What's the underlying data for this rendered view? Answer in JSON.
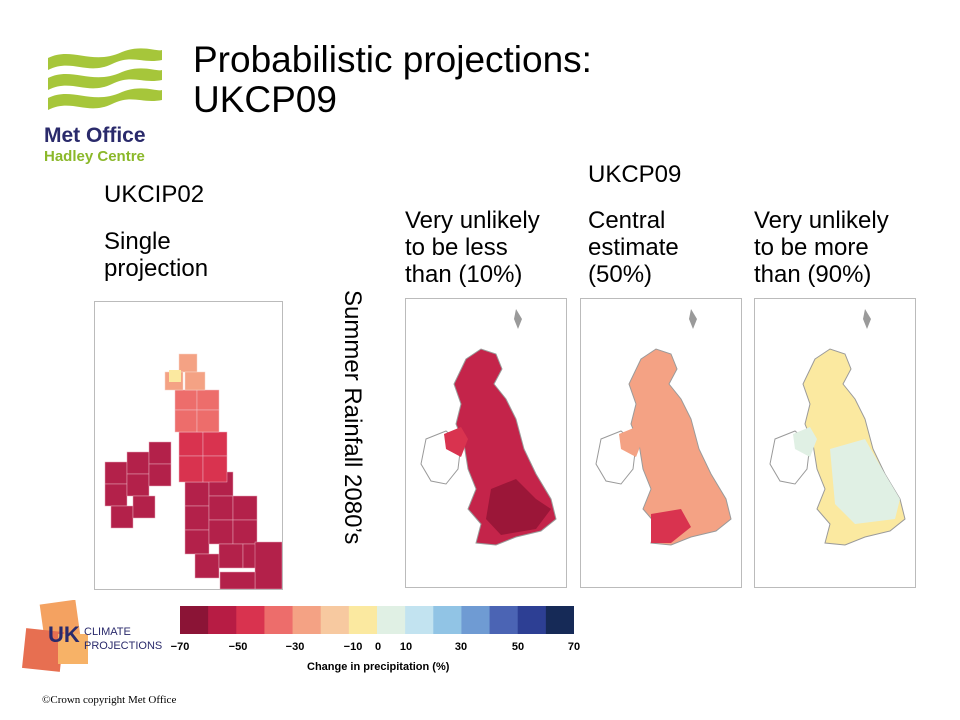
{
  "title_line1": "Probabilistic projections:",
  "title_line2": "UKCP09",
  "logo": {
    "name": "Met Office",
    "sub": "Hadley Centre",
    "color": "#a6c63a"
  },
  "ukcip": {
    "heading": "UKCIP02",
    "line1": "Single",
    "line2": "projection"
  },
  "ukcp_heading": "UKCP09",
  "vertical_label": "Summer Rainfall 2080’s",
  "panels": [
    {
      "line1": "Very unlikely",
      "line2": "to be less",
      "line3": "than (10%)"
    },
    {
      "line1": "Central",
      "line2": "estimate",
      "line3": "(50%)"
    },
    {
      "line1": "Very unlikely",
      "line2": "to be more",
      "line3": "than (90%)"
    }
  ],
  "scale": {
    "colors": [
      "#8b1436",
      "#b71c44",
      "#d9334f",
      "#ed6d6b",
      "#f4a284",
      "#f7c9a0",
      "#fbe9a0",
      "#e0f0e4",
      "#c2e3f0",
      "#91c4e5",
      "#6f9bd3",
      "#4b64b4",
      "#2d3f94",
      "#162a57"
    ],
    "ticks": [
      "−70",
      "−50",
      "−30",
      "−10",
      "0",
      "10",
      "30",
      "50",
      "70"
    ],
    "label": "Change in precipitation (%)"
  },
  "ukcp_logo": {
    "uk": "UK",
    "line1": "CLIMATE",
    "line2": "PROJECTIONS"
  },
  "copyright": "©Crown copyright   Met Office"
}
